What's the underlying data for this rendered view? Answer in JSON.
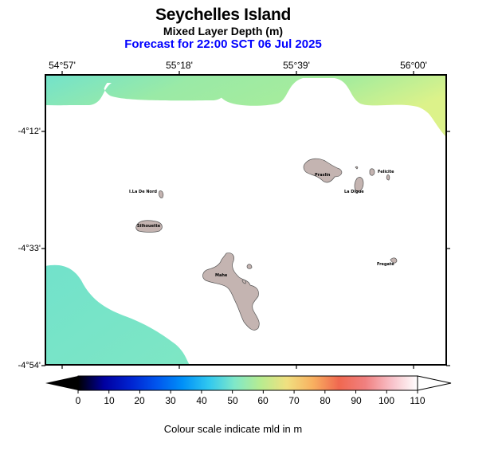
{
  "header": {
    "title": "Seychelles Island",
    "subtitle": "Mixed Layer Depth (m)",
    "forecast": "Forecast for  22:00 SCT 06 Jul 2025"
  },
  "axes": {
    "lon_ticks": [
      "54°57'",
      "55°18'",
      "55°39'",
      "56°00'"
    ],
    "lat_ticks": [
      "-4°12'",
      "-4°33'",
      "-4°54'"
    ]
  },
  "islands": [
    "Praslin",
    "Felicite",
    "La Digue",
    "I.La De Nord",
    "Silhouette",
    "Mahe",
    "Fregate"
  ],
  "colorbar": {
    "ticks": [
      "0",
      "10",
      "20",
      "30",
      "40",
      "50",
      "60",
      "70",
      "80",
      "90",
      "100",
      "110"
    ],
    "colors": [
      "#000000",
      "#0000a0",
      "#0022d0",
      "#0055ee",
      "#0090f8",
      "#30c8f0",
      "#80e8c8",
      "#b8ec90",
      "#f0e080",
      "#f8b060",
      "#f06850",
      "#f08080",
      "#f8c0c8",
      "#ffffff"
    ],
    "caption": "Colour scale indicate mld in m"
  },
  "colors": {
    "island_fill": "#c4b4b1",
    "mld_low": "#72e2cb",
    "mld_mid": "#9eec9e",
    "mld_high": "#d8f08c"
  }
}
